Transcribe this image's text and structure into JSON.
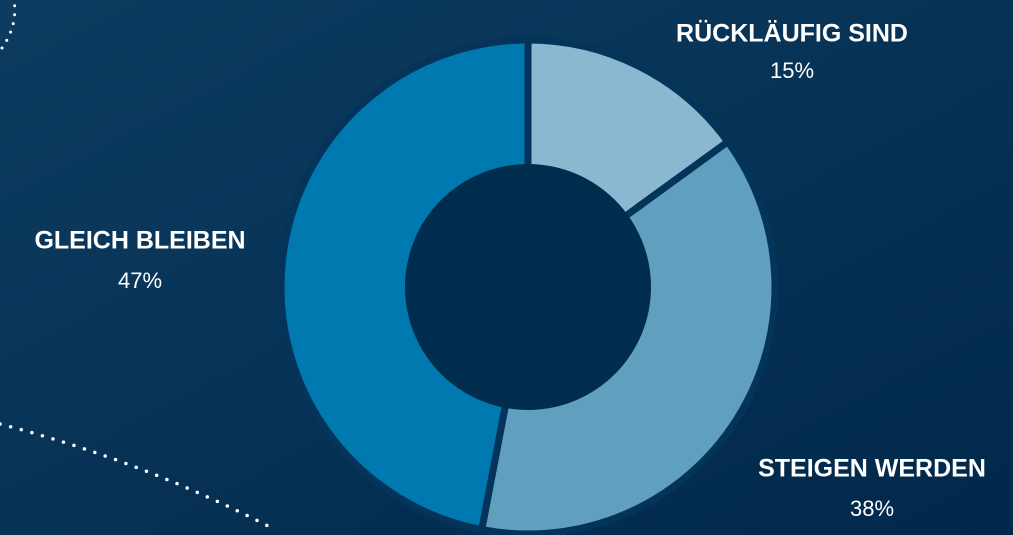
{
  "chart_data": {
    "type": "donut",
    "categories": [
      "RÜCKLÄUFIG SIND",
      "STEIGEN WERDEN",
      "GLEICH BLEIBEN"
    ],
    "values": [
      15,
      38,
      47
    ],
    "value_labels": [
      "15%",
      "38%",
      "47%"
    ],
    "colors": [
      "#8ab8d0",
      "#609fbd",
      "#0079b0"
    ]
  }
}
